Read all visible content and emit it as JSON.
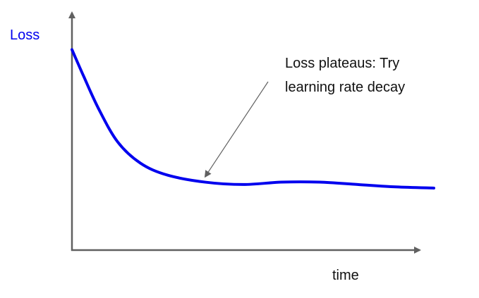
{
  "chart_data": {
    "type": "line",
    "title": "",
    "xlabel": "time",
    "ylabel": "Loss",
    "grid": false,
    "legend": "none",
    "axis_tick_labels": false,
    "colors": {
      "axis": "#606060",
      "line": "#0000ee",
      "ylabel": "#0000ee",
      "annotation_arrow": "#606060"
    },
    "series": [
      {
        "values": [
          {
            "x": 0.0,
            "y": 0.85
          },
          {
            "x": 0.03,
            "y": 0.74
          },
          {
            "x": 0.07,
            "y": 0.6
          },
          {
            "x": 0.12,
            "y": 0.46
          },
          {
            "x": 0.18,
            "y": 0.37
          },
          {
            "x": 0.25,
            "y": 0.32
          },
          {
            "x": 0.35,
            "y": 0.29
          },
          {
            "x": 0.45,
            "y": 0.28
          },
          {
            "x": 0.55,
            "y": 0.29
          },
          {
            "x": 0.65,
            "y": 0.29
          },
          {
            "x": 0.75,
            "y": 0.28
          },
          {
            "x": 0.85,
            "y": 0.27
          },
          {
            "x": 0.95,
            "y": 0.265
          }
        ]
      }
    ],
    "annotations": [
      {
        "text_lines": [
          "Loss plateaus: Try",
          "learning rate decay"
        ],
        "points_to": {
          "x": 0.35,
          "y": 0.29
        }
      }
    ]
  }
}
